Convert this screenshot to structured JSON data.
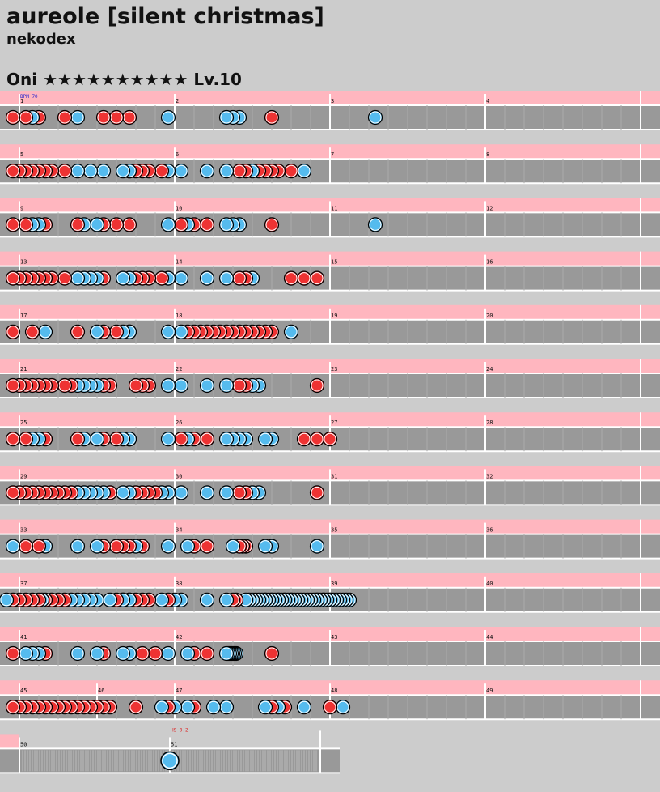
{
  "song": {
    "title": "aureole [silent christmas]",
    "artist": "nekodex",
    "course": "Oni",
    "stars": "★★★★★★★★★★",
    "level": "Lv.10"
  },
  "labels": {
    "bpm": "BPM 70",
    "hs": "HS 0.2"
  },
  "colors": {
    "background": "#cccccc",
    "lane": "#999999",
    "info_strip": "#ffb6bf",
    "don": "#ee3333",
    "ka": "#55bbee",
    "barline": "#ffffff",
    "beatline": "#aaaaaa"
  },
  "chart": {
    "measures_per_row": 4,
    "rows": [
      {
        "measures": [
          "1",
          "2",
          "3",
          "4"
        ],
        "don": [
          2,
          4,
          6,
          10,
          16,
          18,
          20,
          42
        ],
        "ka": [
          5,
          12,
          26,
          35,
          36,
          37,
          58
        ]
      },
      {
        "measures": [
          "5",
          "6",
          "7",
          "8"
        ],
        "don": [
          2,
          3,
          4,
          5,
          6,
          7,
          8,
          10,
          20,
          21,
          22,
          23,
          25,
          37,
          38,
          40,
          41,
          42,
          43,
          45
        ],
        "ka": [
          12,
          14,
          16,
          19,
          20,
          26,
          28,
          32,
          35,
          39,
          47
        ]
      },
      {
        "measures": [
          "9",
          "10",
          "11",
          "12"
        ],
        "don": [
          2,
          4,
          7,
          12,
          16,
          18,
          20,
          28,
          30,
          32,
          42
        ],
        "ka": [
          5,
          6,
          13,
          15,
          26,
          29,
          35,
          36,
          37,
          58
        ]
      },
      {
        "measures": [
          "13",
          "14",
          "15",
          "16"
        ],
        "don": [
          2,
          3,
          4,
          5,
          6,
          7,
          8,
          10,
          16,
          21,
          22,
          23,
          25,
          37,
          38,
          45,
          47,
          49
        ],
        "ka": [
          12,
          13,
          14,
          15,
          19,
          20,
          26,
          28,
          32,
          35,
          39
        ]
      },
      {
        "measures": [
          "17",
          "18",
          "19",
          "20"
        ],
        "don": [
          2,
          5,
          12,
          16,
          18,
          20,
          29,
          30,
          31,
          32,
          33,
          34,
          35,
          36,
          37,
          38,
          39,
          40,
          41,
          42
        ],
        "ka": [
          7,
          15,
          19,
          20,
          26,
          28,
          45
        ]
      },
      {
        "measures": [
          "21",
          "22",
          "23",
          "24"
        ],
        "don": [
          2,
          3,
          4,
          5,
          6,
          7,
          8,
          10,
          11,
          16,
          17,
          21,
          22,
          23,
          37,
          38,
          49
        ],
        "ka": [
          12,
          13,
          14,
          15,
          26,
          28,
          32,
          35,
          39,
          40
        ]
      },
      {
        "measures": [
          "25",
          "26",
          "27",
          "28"
        ],
        "don": [
          2,
          4,
          7,
          12,
          16,
          18,
          20,
          28,
          30,
          32,
          42,
          47,
          49,
          51
        ],
        "ka": [
          5,
          6,
          13,
          15,
          19,
          20,
          26,
          29,
          35,
          36,
          37,
          38,
          41,
          42
        ]
      },
      {
        "measures": [
          "29",
          "30",
          "31",
          "32"
        ],
        "don": [
          2,
          3,
          4,
          5,
          6,
          7,
          8,
          9,
          10,
          11,
          12,
          17,
          21,
          22,
          23,
          24,
          37,
          38,
          49
        ],
        "ka": [
          12,
          13,
          14,
          15,
          16,
          19,
          20,
          25,
          26,
          28,
          32,
          35,
          39,
          40
        ]
      },
      {
        "measures": [
          "33",
          "34",
          "35",
          "36"
        ],
        "don": [
          4,
          6,
          16,
          18,
          19,
          20,
          22,
          30,
          32,
          37,
          37.5,
          38
        ],
        "ka": [
          2,
          7,
          12,
          15,
          21,
          26,
          29,
          36,
          41,
          42,
          49
        ]
      },
      {
        "measures": [
          "37",
          "38",
          "39",
          "40"
        ],
        "don": [
          2,
          3,
          4,
          5,
          6,
          7,
          8,
          9,
          10,
          18,
          19,
          20,
          21,
          22,
          23,
          26,
          36,
          36.5,
          41,
          42,
          43,
          44,
          45,
          49,
          50,
          51
        ],
        "ka": [
          1,
          6.5,
          11,
          12,
          13,
          14,
          15,
          17,
          19,
          20,
          25,
          27,
          28,
          32,
          35,
          38,
          38.5,
          39,
          39.5,
          40,
          40.5,
          41,
          41.5,
          42,
          42.5,
          43,
          43.5,
          44,
          44.5,
          45,
          45.5,
          46,
          46.5,
          47,
          47.5,
          48,
          48.5,
          49,
          49.5,
          50,
          50.5,
          51,
          51.5,
          52,
          52.5,
          53,
          53.5,
          54
        ]
      },
      {
        "measures": [
          "41",
          "42",
          "43",
          "44"
        ],
        "don": [
          2,
          7,
          16,
          20,
          22,
          24,
          30,
          32,
          42
        ],
        "ka": [
          4,
          5,
          6,
          12,
          15,
          19,
          20,
          26,
          29,
          35,
          35.25,
          35.5,
          35.75,
          36,
          36.25,
          36.5
        ]
      },
      {
        "measures": [
          "45",
          "46",
          "47",
          "48",
          "49"
        ],
        "don": [
          2,
          3,
          4,
          5,
          6,
          7,
          8,
          9,
          10,
          11,
          12,
          13,
          14,
          15,
          16,
          17,
          21,
          26,
          30,
          42,
          44,
          51
        ],
        "ka": [
          25,
          27,
          29,
          33,
          35,
          41,
          43,
          47,
          53
        ]
      },
      {
        "measures": [
          "50",
          "51"
        ],
        "don": [],
        "ka": [],
        "drumroll": {
          "balloon": true
        }
      }
    ]
  }
}
